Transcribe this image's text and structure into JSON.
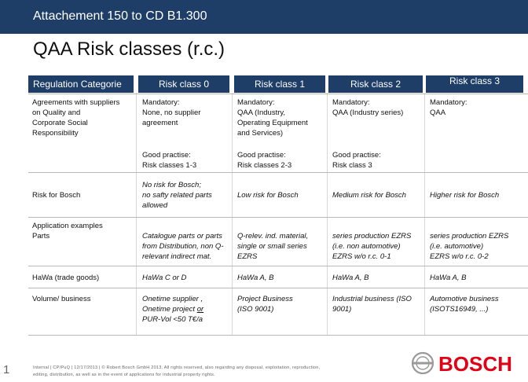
{
  "header": {
    "title": "Attachement 150 to CD B1.300"
  },
  "page_title": "QAA Risk classes (r.c.)",
  "table": {
    "columns": [
      "Regulation Categorie",
      "Risk class 0",
      "Risk class 1",
      "Risk class 2",
      "Risk class 3"
    ],
    "rows": [
      {
        "label": "Agreements with suppliers\non Quality and\nCorporate Social\nResponsibility",
        "cells": [
          "Mandatory:\nNone, no supplier\nagreement",
          "Mandatory:\nQAA (Industry,\nOperating Equipment\nand Services)",
          "Mandatory:\nQAA (Industry series)",
          "Mandatory:\nQAA"
        ]
      },
      {
        "label": "",
        "cells": [
          "Good practise:\nRisk classes 1-3",
          "Good practise:\nRisk classes 2-3",
          "Good practise:\nRisk class 3",
          ""
        ]
      },
      {
        "label": "Risk for Bosch",
        "cells": [
          "No risk for Bosch;\nno safty related parts\nallowed",
          "Low risk for Bosch",
          "Medium risk for Bosch",
          "Higher risk for Bosch"
        ]
      },
      {
        "label": "Application examples\nParts",
        "cells": [
          "Catalogue parts or parts\nfrom Distribution, non Q-\nrelevant indirect mat.",
          "Q-relev. ind. material,\nsingle or small series\nEZRS",
          "series production EZRS\n(i.e. non automotive)\nEZRS w/o r.c. 0-1",
          "series production EZRS\n(i.e. automotive)\nEZRS w/o r.c. 0-2"
        ]
      },
      {
        "label": "HaWa (trade goods)",
        "cells": [
          "HaWa C or D",
          "HaWa A, B",
          "HaWa A, B",
          "HaWa A, B"
        ]
      },
      {
        "label": "Volume/ business",
        "cells": [
          "Onetime supplier ,\nOnetime project ",
          "Project Business\n(ISO 9001)",
          "Industrial business     (ISO\n9001)",
          "Automotive business\n(ISOTS16949, ...)"
        ],
        "cell0_or": "or",
        "cell0_tail": "PUR-Vol <50 T€/a"
      }
    ]
  },
  "page_number": "1",
  "footer": {
    "line1": "Internal | CP/PuQ | 12/17/2013 | © Robert Bosch GmbH 2013. All rights reserved, also regarding any disposal, exploitation, reproduction,",
    "line2": "editing, distribution, as well as in the event of applications for industrial property rights."
  },
  "logo": {
    "text": "BOSCH",
    "color": "#e20015"
  },
  "colors": {
    "header_bg": "#1e3e68"
  }
}
